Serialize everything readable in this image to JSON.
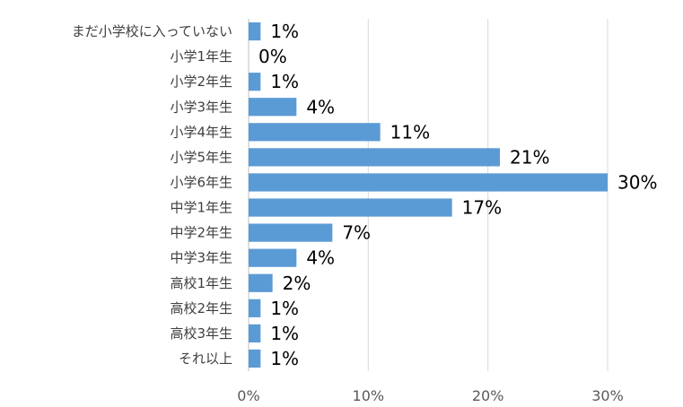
{
  "chart_data": {
    "type": "bar",
    "orientation": "horizontal",
    "categories": [
      "まだ小学校に入っていない",
      "小学1年生",
      "小学2年生",
      "小学3年生",
      "小学4年生",
      "小学5年生",
      "小学6年生",
      "中学1年生",
      "中学2年生",
      "中学3年生",
      "高校1年生",
      "高校2年生",
      "高校3年生",
      "それ以上"
    ],
    "values": [
      1,
      0,
      1,
      4,
      11,
      21,
      30,
      17,
      7,
      4,
      2,
      1,
      1,
      1
    ],
    "data_labels": [
      "1%",
      "0%",
      "1%",
      "4%",
      "11%",
      "21%",
      "30%",
      "17%",
      "7%",
      "4%",
      "2%",
      "1%",
      "1%",
      "1%"
    ],
    "xlim": [
      0,
      30
    ],
    "x_ticks": [
      0,
      10,
      20,
      30
    ],
    "x_tick_labels": [
      "0%",
      "10%",
      "20%",
      "30%"
    ],
    "title": "",
    "xlabel": "",
    "ylabel": "",
    "grid": "vertical",
    "legend": "none",
    "bar_color": "#5b9bd5"
  }
}
